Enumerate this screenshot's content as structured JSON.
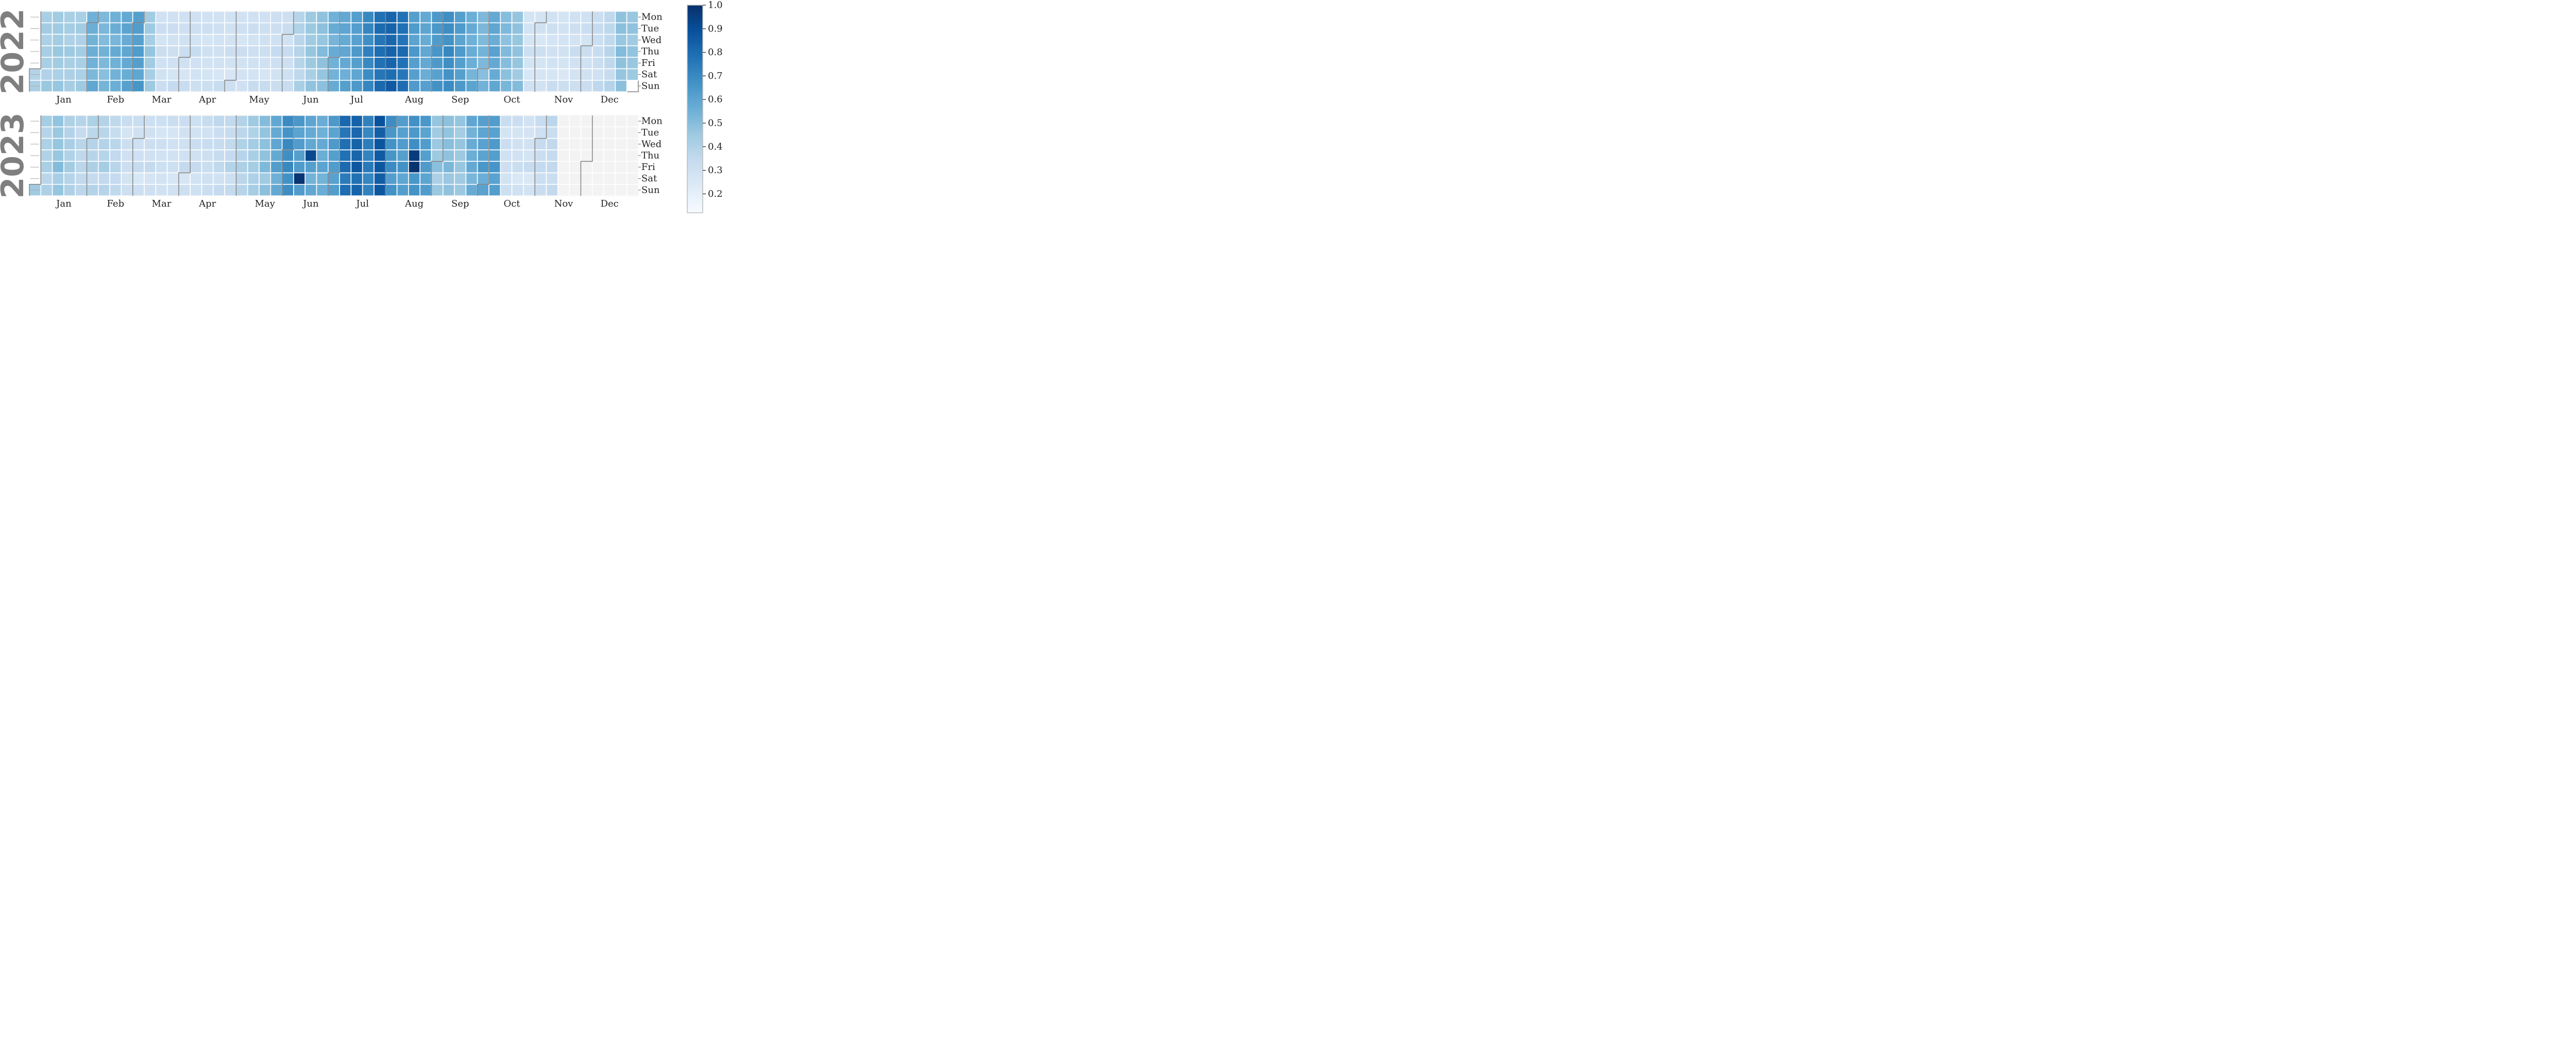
{
  "chart_data": {
    "type": "heatmap",
    "weekday_labels": [
      "Mon",
      "Tue",
      "Wed",
      "Thu",
      "Fri",
      "Sat",
      "Sun"
    ],
    "month_labels": [
      "Jan",
      "Feb",
      "Mar",
      "Apr",
      "May",
      "Jun",
      "Jul",
      "Aug",
      "Sep",
      "Oct",
      "Nov",
      "Dec"
    ],
    "colorbar": {
      "min": 0.12,
      "max": 1.0,
      "ticks": [
        "0.2",
        "0.3",
        "0.4",
        "0.5",
        "0.6",
        "0.7",
        "0.8",
        "0.9",
        "1.0"
      ],
      "colormap": "Blues"
    },
    "missing_color": "#f3f3f3",
    "calendars": [
      {
        "year": "2022",
        "weekly_values": [
          0.4,
          0.42,
          0.44,
          0.42,
          0.42,
          0.55,
          0.52,
          0.55,
          0.58,
          0.62,
          0.44,
          0.3,
          0.3,
          0.3,
          0.3,
          0.29,
          0.29,
          0.29,
          0.29,
          0.3,
          0.3,
          0.31,
          0.31,
          0.38,
          0.45,
          0.48,
          0.55,
          0.58,
          0.62,
          0.7,
          0.78,
          0.82,
          0.78,
          0.62,
          0.58,
          0.64,
          0.68,
          0.62,
          0.56,
          0.52,
          0.58,
          0.5,
          0.47,
          0.28,
          0.28,
          0.29,
          0.28,
          0.3,
          0.3,
          0.32,
          0.36,
          0.48,
          0.46,
          0.42
        ],
        "daily_offsets": [
          0.0,
          0.02,
          -0.02,
          0.03,
          0.0,
          -0.03,
          0.04
        ]
      },
      {
        "year": "2023",
        "weekly_values": [
          0.44,
          0.4,
          0.46,
          0.4,
          0.36,
          0.38,
          0.38,
          0.35,
          0.3,
          0.3,
          0.3,
          0.29,
          0.29,
          0.3,
          0.3,
          0.31,
          0.33,
          0.34,
          0.38,
          0.42,
          0.48,
          0.58,
          0.68,
          0.62,
          0.58,
          0.56,
          0.62,
          0.78,
          0.82,
          0.72,
          0.86,
          0.66,
          0.62,
          0.66,
          0.62,
          0.45,
          0.48,
          0.45,
          0.56,
          0.6,
          0.62,
          0.3,
          0.29,
          0.28,
          0.32,
          0.34,
          null,
          null,
          null,
          null,
          null,
          null,
          null,
          null
        ],
        "daily_offsets": [
          0.03,
          -0.02,
          0.02,
          0.0,
          0.05,
          -0.04,
          0.01
        ],
        "last_day": "Nov 2",
        "late_spikes": [
          {
            "week": 23,
            "day": 5,
            "value": 0.98
          },
          {
            "week": 33,
            "day": 4,
            "value": 0.99
          },
          {
            "week": 33,
            "day": 3,
            "value": 0.96
          },
          {
            "week": 24,
            "day": 3,
            "value": 0.92
          }
        ]
      }
    ]
  }
}
